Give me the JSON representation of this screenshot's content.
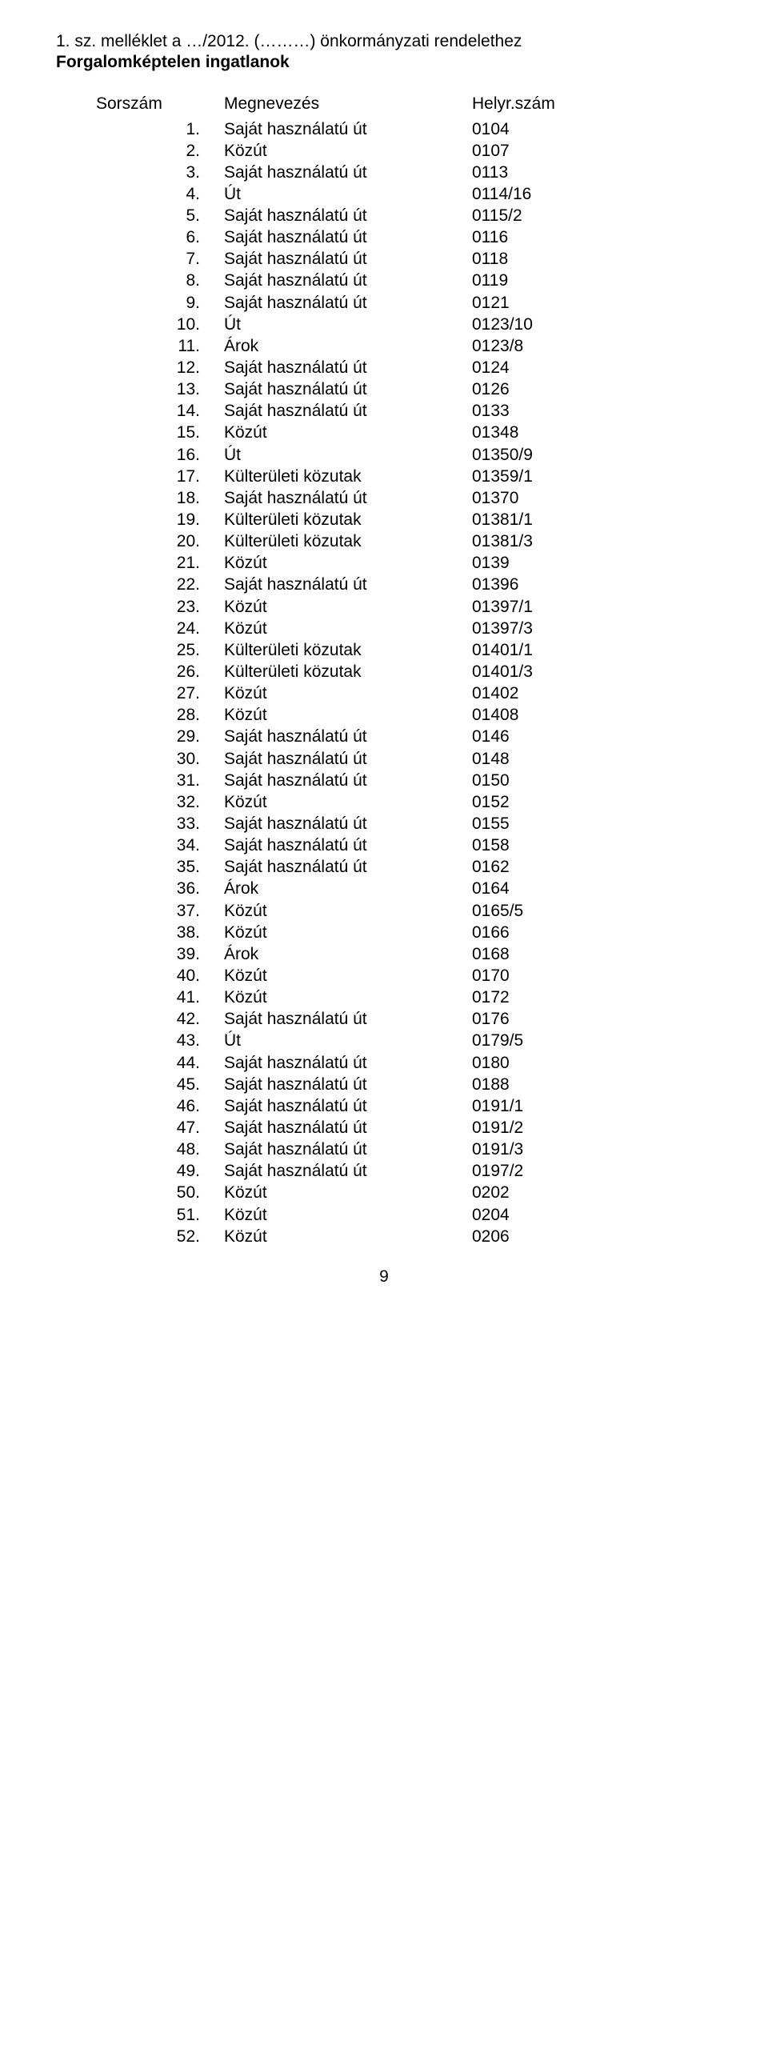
{
  "header": {
    "prefix": "1. sz. melléklet a …/2012. (………) önkormányzati rendelethez",
    "title": "Forgalomképtelen ingatlanok"
  },
  "columns": {
    "sorszam": "Sorszám",
    "megnevezes": "Megnevezés",
    "helyrszam": "Helyr.szám"
  },
  "rows": [
    {
      "n": "1.",
      "m": "Saját használatú út",
      "h": "0104"
    },
    {
      "n": "2.",
      "m": "Közút",
      "h": "0107"
    },
    {
      "n": "3.",
      "m": "Saját használatú út",
      "h": "0113"
    },
    {
      "n": "4.",
      "m": "Út",
      "h": "0114/16"
    },
    {
      "n": "5.",
      "m": "Saját használatú út",
      "h": "0115/2"
    },
    {
      "n": "6.",
      "m": "Saját használatú út",
      "h": "0116"
    },
    {
      "n": "7.",
      "m": "Saját használatú út",
      "h": "0118"
    },
    {
      "n": "8.",
      "m": "Saját használatú út",
      "h": "0119"
    },
    {
      "n": "9.",
      "m": "Saját használatú út",
      "h": "0121"
    },
    {
      "n": "10.",
      "m": "Út",
      "h": "0123/10"
    },
    {
      "n": "11.",
      "m": "Árok",
      "h": "0123/8"
    },
    {
      "n": "12.",
      "m": "Saját használatú út",
      "h": "0124"
    },
    {
      "n": "13.",
      "m": "Saját használatú út",
      "h": "0126"
    },
    {
      "n": "14.",
      "m": "Saját használatú út",
      "h": "0133"
    },
    {
      "n": "15.",
      "m": "Közút",
      "h": "01348"
    },
    {
      "n": "16.",
      "m": "Út",
      "h": "01350/9"
    },
    {
      "n": "17.",
      "m": "Külterületi közutak",
      "h": "01359/1"
    },
    {
      "n": "18.",
      "m": "Saját használatú út",
      "h": "01370"
    },
    {
      "n": "19.",
      "m": "Külterületi közutak",
      "h": "01381/1"
    },
    {
      "n": "20.",
      "m": "Külterületi közutak",
      "h": "01381/3"
    },
    {
      "n": "21.",
      "m": "Közút",
      "h": "0139"
    },
    {
      "n": "22.",
      "m": "Saját használatú út",
      "h": "01396"
    },
    {
      "n": "23.",
      "m": "Közút",
      "h": "01397/1"
    },
    {
      "n": "24.",
      "m": "Közút",
      "h": "01397/3"
    },
    {
      "n": "25.",
      "m": "Külterületi közutak",
      "h": "01401/1"
    },
    {
      "n": "26.",
      "m": "Külterületi közutak",
      "h": "01401/3"
    },
    {
      "n": "27.",
      "m": "Közút",
      "h": "01402"
    },
    {
      "n": "28.",
      "m": "Közút",
      "h": "01408"
    },
    {
      "n": "29.",
      "m": "Saját használatú út",
      "h": "0146"
    },
    {
      "n": "30.",
      "m": "Saját használatú út",
      "h": "0148"
    },
    {
      "n": "31.",
      "m": "Saját használatú út",
      "h": "0150"
    },
    {
      "n": "32.",
      "m": "Közút",
      "h": "0152"
    },
    {
      "n": "33.",
      "m": "Saját használatú út",
      "h": "0155"
    },
    {
      "n": "34.",
      "m": "Saját használatú út",
      "h": "0158"
    },
    {
      "n": "35.",
      "m": "Saját használatú út",
      "h": "0162"
    },
    {
      "n": "36.",
      "m": "Árok",
      "h": "0164"
    },
    {
      "n": "37.",
      "m": "Közút",
      "h": "0165/5"
    },
    {
      "n": "38.",
      "m": "Közút",
      "h": "0166"
    },
    {
      "n": "39.",
      "m": "Árok",
      "h": "0168"
    },
    {
      "n": "40.",
      "m": "Közút",
      "h": "0170"
    },
    {
      "n": "41.",
      "m": "Közút",
      "h": "0172"
    },
    {
      "n": "42.",
      "m": "Saját használatú út",
      "h": "0176"
    },
    {
      "n": "43.",
      "m": "Út",
      "h": "0179/5"
    },
    {
      "n": "44.",
      "m": "Saját használatú út",
      "h": "0180"
    },
    {
      "n": "45.",
      "m": "Saját használatú út",
      "h": "0188"
    },
    {
      "n": "46.",
      "m": "Saját használatú út",
      "h": "0191/1"
    },
    {
      "n": "47.",
      "m": "Saját használatú út",
      "h": "0191/2"
    },
    {
      "n": "48.",
      "m": "Saját használatú út",
      "h": "0191/3"
    },
    {
      "n": "49.",
      "m": "Saját használatú út",
      "h": "0197/2"
    },
    {
      "n": "50.",
      "m": "Közút",
      "h": "0202"
    },
    {
      "n": "51.",
      "m": "Közút",
      "h": "0204"
    },
    {
      "n": "52.",
      "m": "Közút",
      "h": "0206"
    }
  ],
  "pageNumber": "9",
  "style": {
    "fontFamily": "Arial",
    "fontSize": 21,
    "textColor": "#000000",
    "background": "#ffffff"
  }
}
